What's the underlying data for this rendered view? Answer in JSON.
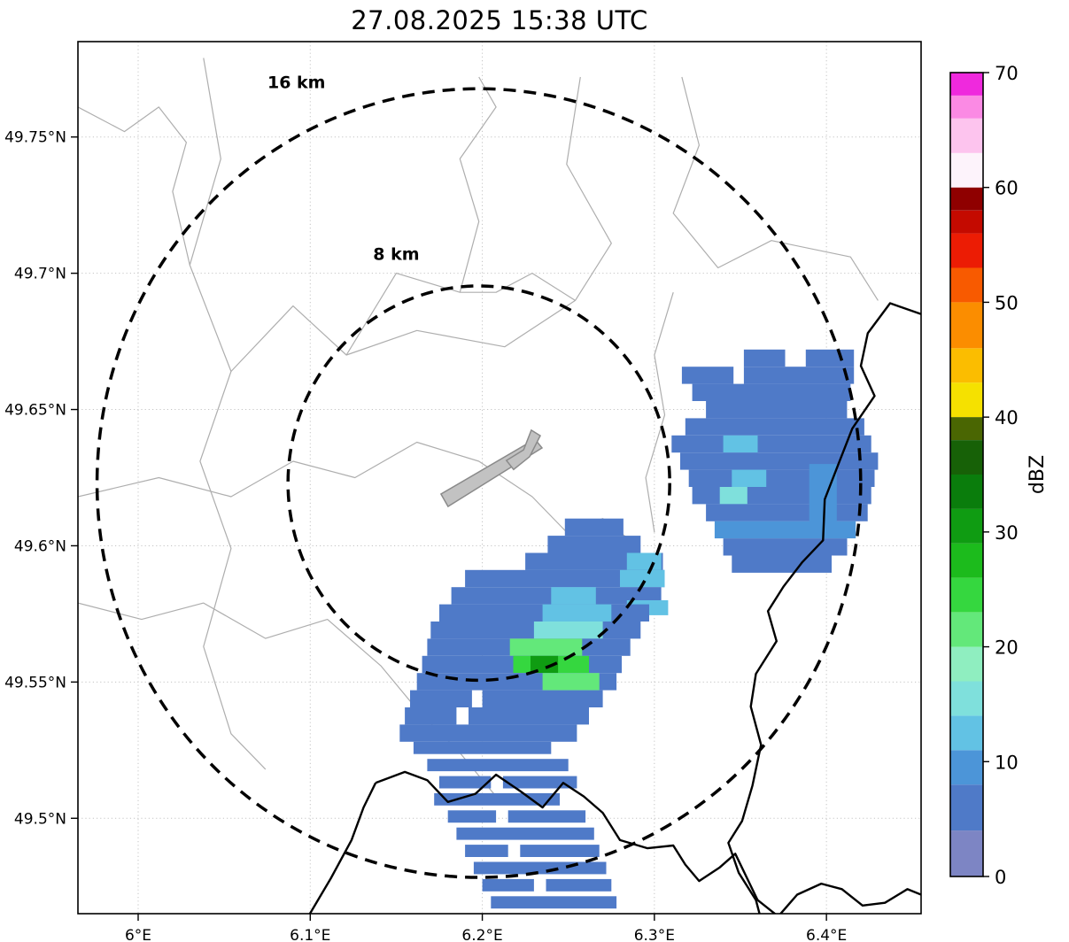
{
  "figure": {
    "title": "27.08.2025 15:38 UTC"
  },
  "chart_data": {
    "type": "heatmap",
    "title": "27.08.2025 15:38 UTC",
    "subtitle": "",
    "xlabel": "",
    "ylabel": "",
    "grid": true,
    "xlim": [
      5.965,
      6.455
    ],
    "ylim": [
      49.465,
      49.785
    ],
    "x_ticks": [
      {
        "value": 6.0,
        "label": "6°E"
      },
      {
        "value": 6.1,
        "label": "6.1°E"
      },
      {
        "value": 6.2,
        "label": "6.2°E"
      },
      {
        "value": 6.3,
        "label": "6.3°E"
      },
      {
        "value": 6.4,
        "label": "6.4°E"
      }
    ],
    "y_ticks": [
      {
        "value": 49.5,
        "label": "49.5°N"
      },
      {
        "value": 49.55,
        "label": "49.55°N"
      },
      {
        "value": 49.6,
        "label": "49.6°N"
      },
      {
        "value": 49.65,
        "label": "49.65°N"
      },
      {
        "value": 49.7,
        "label": "49.7°N"
      },
      {
        "value": 49.75,
        "label": "49.75°N"
      }
    ],
    "range_rings": {
      "center": {
        "lon": 6.198,
        "lat": 49.623
      },
      "rings": [
        {
          "radius_km": 8,
          "label": "8 km",
          "label_lon": 6.15,
          "label_lat": 49.705
        },
        {
          "radius_km": 16,
          "label": "16 km",
          "label_lon": 6.092,
          "label_lat": 49.768
        }
      ]
    },
    "airport_shapes": [
      [
        [
          6.176,
          49.619
        ],
        [
          6.2306,
          49.6391
        ],
        [
          6.2347,
          49.6359
        ],
        [
          6.1801,
          49.6144
        ]
      ],
      [
        [
          6.214,
          49.6313
        ],
        [
          6.224,
          49.6352
        ],
        [
          6.2285,
          49.6424
        ],
        [
          6.2337,
          49.6404
        ],
        [
          6.2275,
          49.6327
        ],
        [
          6.2182,
          49.628
        ]
      ]
    ],
    "map_lines": {
      "minor": [
        [
          [
            6.038,
            49.779
          ],
          [
            6.048,
            49.742
          ],
          [
            6.03,
            49.703
          ],
          [
            6.054,
            49.664
          ],
          [
            6.036,
            49.631
          ],
          [
            6.054,
            49.599
          ],
          [
            6.038,
            49.563
          ],
          [
            6.054,
            49.531
          ],
          [
            6.074,
            49.518
          ]
        ],
        [
          [
            6.257,
            49.772
          ],
          [
            6.249,
            49.74
          ],
          [
            6.275,
            49.711
          ],
          [
            6.254,
            49.69
          ],
          [
            6.213,
            49.673
          ],
          [
            6.162,
            49.679
          ],
          [
            6.121,
            49.67
          ],
          [
            6.09,
            49.688
          ],
          [
            6.054,
            49.664
          ]
        ],
        [
          [
            6.316,
            49.772
          ],
          [
            6.326,
            49.747
          ],
          [
            6.311,
            49.722
          ],
          [
            6.337,
            49.702
          ],
          [
            6.368,
            49.712
          ],
          [
            6.414,
            49.706
          ],
          [
            6.43,
            49.69
          ]
        ],
        [
          [
            5.965,
            49.618
          ],
          [
            6.012,
            49.625
          ],
          [
            6.054,
            49.618
          ],
          [
            6.09,
            49.631
          ],
          [
            6.126,
            49.625
          ],
          [
            6.162,
            49.638
          ],
          [
            6.198,
            49.631
          ],
          [
            6.229,
            49.618
          ],
          [
            6.249,
            49.605
          ],
          [
            6.27,
            49.61
          ],
          [
            6.29,
            49.6
          ]
        ],
        [
          [
            5.965,
            49.579
          ],
          [
            6.002,
            49.573
          ],
          [
            6.038,
            49.579
          ],
          [
            6.074,
            49.566
          ],
          [
            6.11,
            49.573
          ],
          [
            6.141,
            49.556
          ],
          [
            6.162,
            49.54
          ],
          [
            6.187,
            49.524
          ],
          [
            6.208,
            49.508
          ]
        ],
        [
          [
            6.311,
            49.693
          ],
          [
            6.3,
            49.67
          ],
          [
            6.306,
            49.648
          ],
          [
            6.295,
            49.625
          ],
          [
            6.3,
            49.605
          ]
        ],
        [
          [
            5.965,
            49.761
          ],
          [
            5.992,
            49.752
          ],
          [
            6.012,
            49.761
          ],
          [
            6.028,
            49.748
          ],
          [
            6.02,
            49.73
          ],
          [
            6.03,
            49.703
          ]
        ],
        [
          [
            6.187,
            49.693
          ],
          [
            6.198,
            49.719
          ],
          [
            6.187,
            49.742
          ],
          [
            6.208,
            49.761
          ],
          [
            6.198,
            49.772
          ]
        ],
        [
          [
            6.254,
            49.69
          ],
          [
            6.229,
            49.7
          ],
          [
            6.208,
            49.693
          ],
          [
            6.187,
            49.693
          ],
          [
            6.15,
            49.7
          ],
          [
            6.121,
            49.67
          ]
        ]
      ],
      "major": [
        [
          [
            6.455,
            49.685
          ],
          [
            6.437,
            49.689
          ],
          [
            6.424,
            49.678
          ],
          [
            6.42,
            49.666
          ],
          [
            6.428,
            49.655
          ],
          [
            6.415,
            49.643
          ],
          [
            6.407,
            49.63
          ],
          [
            6.399,
            49.617
          ],
          [
            6.398,
            49.602
          ],
          [
            6.386,
            49.594
          ],
          [
            6.375,
            49.585
          ],
          [
            6.366,
            49.576
          ],
          [
            6.371,
            49.565
          ],
          [
            6.359,
            49.553
          ],
          [
            6.356,
            49.541
          ],
          [
            6.362,
            49.527
          ],
          [
            6.357,
            49.512
          ],
          [
            6.351,
            49.499
          ],
          [
            6.343,
            49.491
          ],
          [
            6.349,
            49.48
          ],
          [
            6.359,
            49.47
          ],
          [
            6.364,
            49.458
          ]
        ],
        [
          [
            6.138,
            49.513
          ],
          [
            6.155,
            49.517
          ],
          [
            6.168,
            49.514
          ],
          [
            6.18,
            49.506
          ],
          [
            6.196,
            49.509
          ],
          [
            6.208,
            49.516
          ],
          [
            6.222,
            49.51
          ],
          [
            6.235,
            49.504
          ],
          [
            6.247,
            49.513
          ],
          [
            6.259,
            49.508
          ],
          [
            6.27,
            49.502
          ],
          [
            6.28,
            49.492
          ],
          [
            6.296,
            49.489
          ],
          [
            6.311,
            49.49
          ],
          [
            6.318,
            49.483
          ],
          [
            6.326,
            49.477
          ],
          [
            6.338,
            49.482
          ],
          [
            6.347,
            49.487
          ],
          [
            6.36,
            49.47
          ]
        ],
        [
          [
            6.097,
            49.462
          ],
          [
            6.112,
            49.478
          ],
          [
            6.124,
            49.492
          ],
          [
            6.131,
            49.504
          ],
          [
            6.138,
            49.513
          ]
        ],
        [
          [
            6.36,
            49.47
          ],
          [
            6.372,
            49.464
          ],
          [
            6.383,
            49.472
          ],
          [
            6.397,
            49.476
          ],
          [
            6.409,
            49.474
          ],
          [
            6.421,
            49.468
          ],
          [
            6.434,
            49.469
          ],
          [
            6.447,
            49.474
          ],
          [
            6.455,
            49.472
          ]
        ]
      ]
    },
    "radar_cells_format": "[lon_west, lat_north, lon_width, lat_height, dBZ]",
    "radar_cells": [
      [
        6.352,
        49.672,
        0.024,
        0.0063,
        5
      ],
      [
        6.388,
        49.672,
        0.028,
        0.0063,
        6
      ],
      [
        6.316,
        49.6657,
        0.03,
        0.0063,
        5
      ],
      [
        6.352,
        49.6657,
        0.064,
        0.0063,
        6
      ],
      [
        6.322,
        49.6594,
        0.092,
        0.0063,
        6
      ],
      [
        6.33,
        49.6531,
        0.082,
        0.0063,
        5
      ],
      [
        6.318,
        49.6468,
        0.104,
        0.0063,
        7
      ],
      [
        6.31,
        49.6405,
        0.116,
        0.0063,
        6
      ],
      [
        6.34,
        49.6405,
        0.02,
        0.0063,
        12
      ],
      [
        6.315,
        49.6342,
        0.115,
        0.0063,
        7
      ],
      [
        6.32,
        49.6279,
        0.108,
        0.0063,
        6
      ],
      [
        6.345,
        49.6279,
        0.02,
        0.0063,
        13
      ],
      [
        6.322,
        49.6216,
        0.104,
        0.0063,
        7
      ],
      [
        6.338,
        49.6216,
        0.016,
        0.0063,
        14
      ],
      [
        6.33,
        49.6153,
        0.094,
        0.0063,
        6
      ],
      [
        6.39,
        49.63,
        0.016,
        0.025,
        8
      ],
      [
        6.335,
        49.609,
        0.082,
        0.0063,
        8
      ],
      [
        6.34,
        49.6027,
        0.072,
        0.0063,
        6
      ],
      [
        6.345,
        49.5964,
        0.058,
        0.0063,
        5
      ],
      [
        6.248,
        49.61,
        0.034,
        0.0063,
        5
      ],
      [
        6.238,
        49.6037,
        0.054,
        0.0063,
        6
      ],
      [
        6.225,
        49.5974,
        0.08,
        0.0063,
        7
      ],
      [
        6.284,
        49.5974,
        0.02,
        0.0063,
        12
      ],
      [
        6.19,
        49.5911,
        0.116,
        0.0063,
        6
      ],
      [
        6.28,
        49.5911,
        0.026,
        0.0063,
        13
      ],
      [
        6.182,
        49.5848,
        0.122,
        0.0063,
        7
      ],
      [
        6.24,
        49.5848,
        0.026,
        0.0063,
        12
      ],
      [
        6.284,
        49.58,
        0.024,
        0.0055,
        13
      ],
      [
        6.175,
        49.5785,
        0.122,
        0.0063,
        6
      ],
      [
        6.235,
        49.5785,
        0.04,
        0.0063,
        13
      ],
      [
        6.17,
        49.5722,
        0.122,
        0.0063,
        7
      ],
      [
        6.23,
        49.5722,
        0.04,
        0.0063,
        14
      ],
      [
        6.168,
        49.5659,
        0.118,
        0.0063,
        6
      ],
      [
        6.216,
        49.5659,
        0.042,
        0.0063,
        22
      ],
      [
        6.165,
        49.5596,
        0.116,
        0.0063,
        7
      ],
      [
        6.218,
        49.5596,
        0.044,
        0.0063,
        24
      ],
      [
        6.228,
        49.5596,
        0.016,
        0.0063,
        30
      ],
      [
        6.162,
        49.5533,
        0.116,
        0.0063,
        6
      ],
      [
        6.235,
        49.5533,
        0.033,
        0.0063,
        20
      ],
      [
        6.158,
        49.547,
        0.036,
        0.0063,
        6
      ],
      [
        6.2,
        49.547,
        0.07,
        0.0063,
        6
      ],
      [
        6.155,
        49.5407,
        0.03,
        0.0063,
        7
      ],
      [
        6.192,
        49.5407,
        0.07,
        0.0063,
        7
      ],
      [
        6.152,
        49.5344,
        0.103,
        0.0063,
        6
      ],
      [
        6.16,
        49.5281,
        0.08,
        0.0045,
        6
      ],
      [
        6.168,
        49.5218,
        0.082,
        0.0045,
        5
      ],
      [
        6.175,
        49.5155,
        0.03,
        0.0045,
        6
      ],
      [
        6.212,
        49.5155,
        0.043,
        0.0045,
        6
      ],
      [
        6.172,
        49.5092,
        0.073,
        0.0045,
        6
      ],
      [
        6.18,
        49.5029,
        0.028,
        0.0045,
        5
      ],
      [
        6.215,
        49.5029,
        0.045,
        0.0045,
        5
      ],
      [
        6.185,
        49.4966,
        0.08,
        0.0045,
        6
      ],
      [
        6.19,
        49.4903,
        0.025,
        0.0045,
        5
      ],
      [
        6.222,
        49.4903,
        0.046,
        0.0045,
        5
      ],
      [
        6.195,
        49.484,
        0.077,
        0.0045,
        6
      ],
      [
        6.2,
        49.4777,
        0.03,
        0.0045,
        5
      ],
      [
        6.237,
        49.4777,
        0.038,
        0.0045,
        5
      ],
      [
        6.205,
        49.4714,
        0.073,
        0.0045,
        6
      ],
      [
        6.21,
        49.4651,
        0.028,
        0.0045,
        5
      ],
      [
        6.245,
        49.4651,
        0.035,
        0.0045,
        5
      ]
    ],
    "colorbar": {
      "label": "dBZ",
      "min": 0,
      "max": 70,
      "ticks": [
        0,
        10,
        20,
        30,
        40,
        50,
        60,
        70
      ],
      "segments": [
        {
          "range": [
            0,
            4
          ],
          "color": "#7d85c4"
        },
        {
          "range": [
            4,
            8
          ],
          "color": "#4f7ac8"
        },
        {
          "range": [
            8,
            11
          ],
          "color": "#4c95d8"
        },
        {
          "range": [
            11,
            14
          ],
          "color": "#62c2e4"
        },
        {
          "range": [
            14,
            17
          ],
          "color": "#7fe0dc"
        },
        {
          "range": [
            17,
            20
          ],
          "color": "#8feec0"
        },
        {
          "range": [
            20,
            23
          ],
          "color": "#63e87a"
        },
        {
          "range": [
            23,
            26
          ],
          "color": "#35d73f"
        },
        {
          "range": [
            26,
            29
          ],
          "color": "#1cbb1c"
        },
        {
          "range": [
            29,
            32
          ],
          "color": "#0f9c12"
        },
        {
          "range": [
            32,
            35
          ],
          "color": "#0a7d0c"
        },
        {
          "range": [
            35,
            38
          ],
          "color": "#176107"
        },
        {
          "range": [
            38,
            40
          ],
          "color": "#4a6602"
        },
        {
          "range": [
            40,
            43
          ],
          "color": "#f5e100"
        },
        {
          "range": [
            43,
            46
          ],
          "color": "#fbbd00"
        },
        {
          "range": [
            46,
            50
          ],
          "color": "#fb8d00"
        },
        {
          "range": [
            50,
            53
          ],
          "color": "#f85a00"
        },
        {
          "range": [
            53,
            56
          ],
          "color": "#ec1c04"
        },
        {
          "range": [
            56,
            58
          ],
          "color": "#c40a00"
        },
        {
          "range": [
            58,
            60
          ],
          "color": "#8f0000"
        },
        {
          "range": [
            60,
            63
          ],
          "color": "#fdf3fb"
        },
        {
          "range": [
            63,
            66
          ],
          "color": "#fdc4ee"
        },
        {
          "range": [
            66,
            68
          ],
          "color": "#fb8ae4"
        },
        {
          "range": [
            68,
            70
          ],
          "color": "#ef29dd"
        }
      ]
    },
    "style_colors": {
      "grid": "#c4c4c4",
      "minor_line": "#aeaeae",
      "major_line": "#000000",
      "airport_fill": "#c2c2c2",
      "airport_stroke": "#8a8a8a",
      "ring_stroke": "#000000"
    }
  }
}
